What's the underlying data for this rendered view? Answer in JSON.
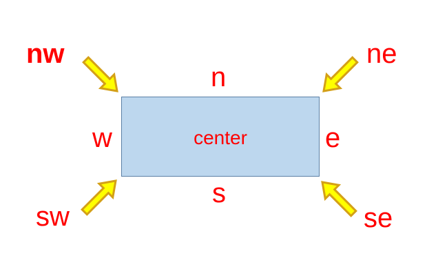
{
  "diagram": {
    "center_label": "center",
    "labels": {
      "nw": "nw",
      "n": "n",
      "ne": "ne",
      "w": "w",
      "e": "e",
      "sw": "sw",
      "s": "s",
      "se": "se"
    },
    "colors": {
      "label_text": "#ff0000",
      "box_fill": "#bdd7ee",
      "box_border": "#5b7fa5",
      "arrow_fill": "#ffff00",
      "arrow_stroke": "#d4a017"
    }
  }
}
